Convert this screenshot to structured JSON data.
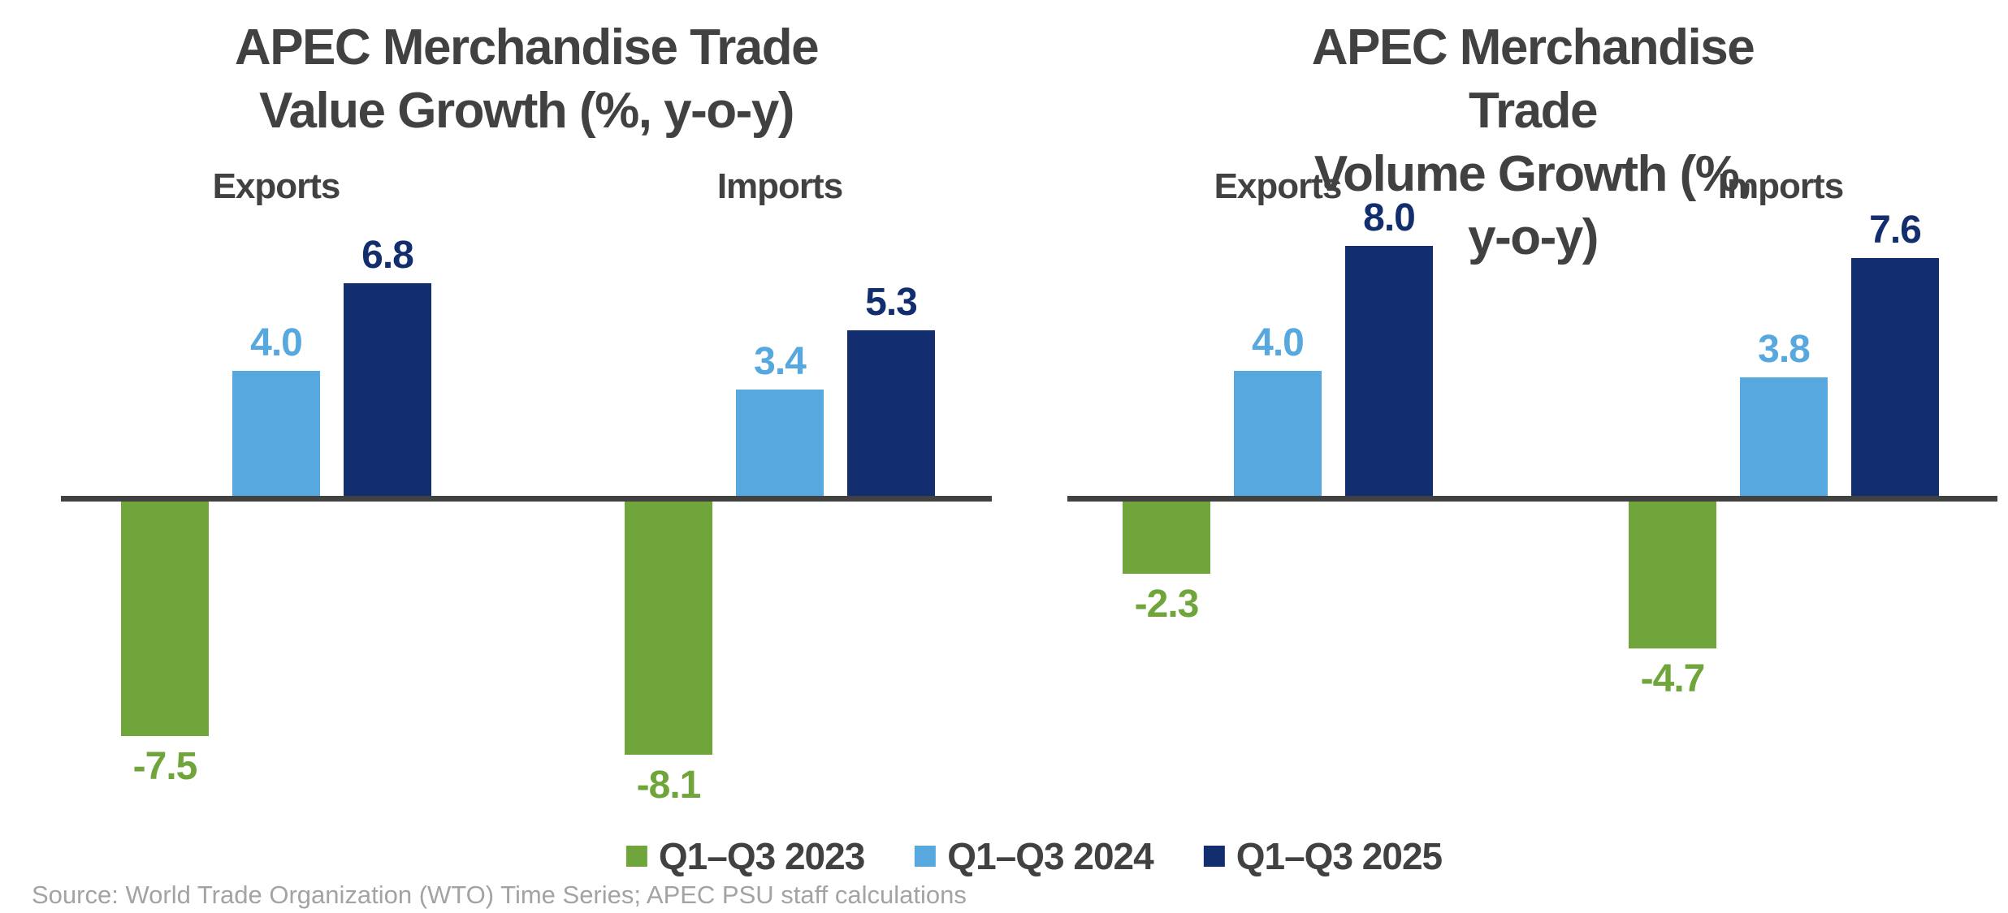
{
  "colors": {
    "green": "#6FA53A",
    "light_blue": "#56A8DE",
    "navy": "#132E6F",
    "axis": "#414141",
    "title_text": "#414141",
    "source_text": "#A3A3A3"
  },
  "legend": {
    "items": [
      {
        "label": "Q1–Q3 2023",
        "color": "#6FA53A"
      },
      {
        "label": "Q1–Q3 2024",
        "color": "#56A8DE"
      },
      {
        "label": "Q1–Q3 2025",
        "color": "#132E6F"
      }
    ]
  },
  "source_note": "Source: World Trade Organization (WTO) Time Series; APEC PSU staff calculations",
  "chart_data": [
    {
      "type": "bar",
      "title": "APEC Merchandise Trade\nValue Growth (%, y-o-y)",
      "categories": [
        "Exports",
        "Imports"
      ],
      "series": [
        {
          "name": "Q1–Q3 2023",
          "color": "#6FA53A",
          "values": [
            -7.5,
            -8.1
          ]
        },
        {
          "name": "Q1–Q3 2024",
          "color": "#56A8DE",
          "values": [
            4.0,
            3.4
          ]
        },
        {
          "name": "Q1–Q3 2025",
          "color": "#132E6F",
          "values": [
            6.8,
            5.3
          ]
        }
      ],
      "value_labels": true,
      "value_label_format": "0.0",
      "ylim": [
        -10,
        9
      ],
      "gridlines": false,
      "axis_line": true,
      "legend_position": "bottom"
    },
    {
      "type": "bar",
      "title": "APEC Merchandise Trade\nVolume Growth (%, y-o-y)",
      "categories": [
        "Exports",
        "Imports"
      ],
      "series": [
        {
          "name": "Q1–Q3 2023",
          "color": "#6FA53A",
          "values": [
            -2.3,
            -4.7
          ]
        },
        {
          "name": "Q1–Q3 2024",
          "color": "#56A8DE",
          "values": [
            4.0,
            3.8
          ]
        },
        {
          "name": "Q1–Q3 2025",
          "color": "#132E6F",
          "values": [
            8.0,
            7.6
          ]
        }
      ],
      "value_labels": true,
      "value_label_format": "0.0",
      "ylim": [
        -10,
        9
      ],
      "gridlines": false,
      "axis_line": true,
      "legend_position": "bottom"
    }
  ]
}
